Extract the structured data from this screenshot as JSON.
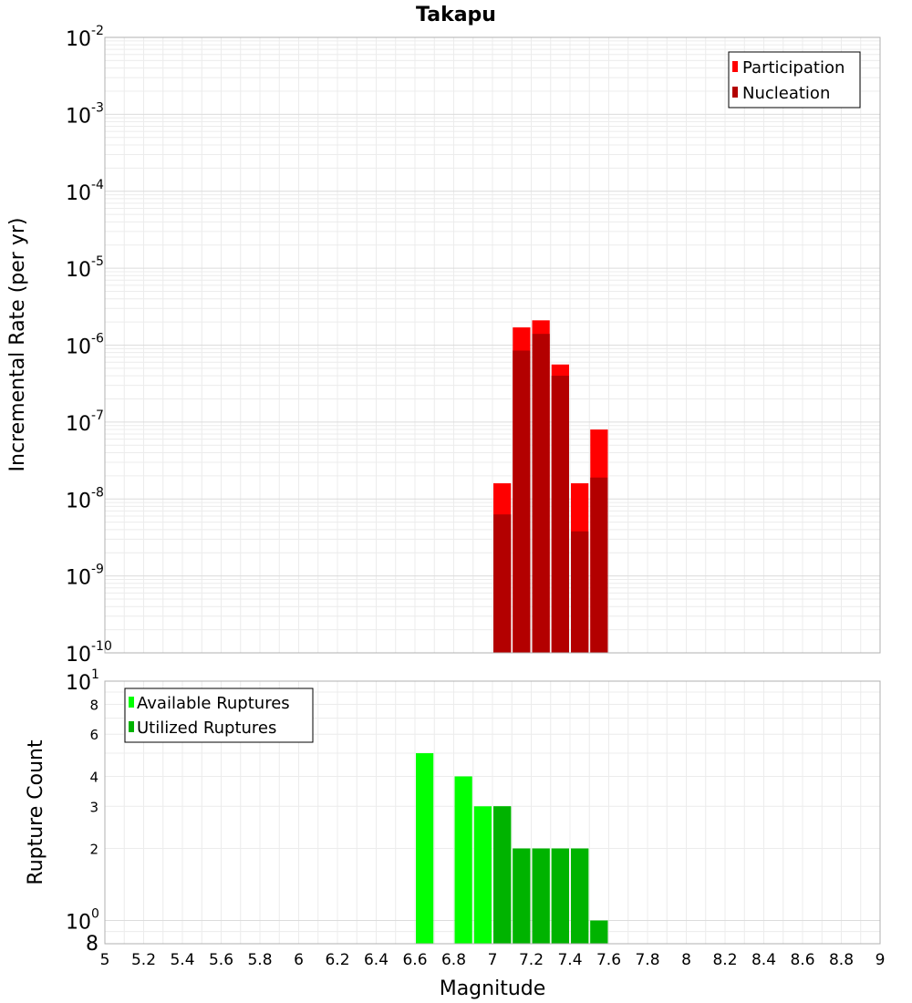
{
  "chart_data": [
    {
      "type": "bar",
      "title": "Takapu",
      "ylabel": "Incremental Rate (per yr)",
      "xlabel": "",
      "yscale": "log",
      "ylim": [
        1e-10,
        0.01
      ],
      "xlim": [
        5,
        9
      ],
      "bar_width": 0.1,
      "y_ticks": [
        {
          "base": "10",
          "exp": "-2",
          "value": 0.01
        },
        {
          "base": "10",
          "exp": "-3",
          "value": 0.001
        },
        {
          "base": "10",
          "exp": "-4",
          "value": 0.0001
        },
        {
          "base": "10",
          "exp": "-5",
          "value": 1e-05
        },
        {
          "base": "10",
          "exp": "-6",
          "value": 1e-06
        },
        {
          "base": "10",
          "exp": "-7",
          "value": 1e-07
        },
        {
          "base": "10",
          "exp": "-8",
          "value": 1e-08
        },
        {
          "base": "10",
          "exp": "-9",
          "value": 1e-09
        },
        {
          "base": "10",
          "exp": "-10",
          "value": 1e-10
        }
      ],
      "legend": {
        "position": "top-right",
        "entries": [
          {
            "label": "Participation",
            "color": "#ff0000"
          },
          {
            "label": "Nucleation",
            "color": "#b30000"
          }
        ]
      },
      "series": [
        {
          "name": "Participation",
          "color": "#ff0000",
          "x": [
            7.05,
            7.15,
            7.25,
            7.35,
            7.45,
            7.55
          ],
          "values": [
            1.6e-08,
            1.7e-06,
            2.1e-06,
            5.6e-07,
            1.6e-08,
            8e-08
          ]
        },
        {
          "name": "Nucleation",
          "color": "#b30000",
          "x": [
            7.05,
            7.15,
            7.25,
            7.35,
            7.45,
            7.55
          ],
          "values": [
            6.3e-09,
            8.5e-07,
            1.4e-06,
            4e-07,
            3.8e-09,
            1.9e-08
          ]
        }
      ]
    },
    {
      "type": "bar",
      "title": "",
      "ylabel": "Rupture Count",
      "xlabel": "Magnitude",
      "yscale": "log",
      "ylim": [
        0.8,
        10
      ],
      "xlim": [
        5,
        9
      ],
      "bar_width": 0.1,
      "x_ticks": [
        "5",
        "5.2",
        "5.4",
        "5.6",
        "5.8",
        "6",
        "6.2",
        "6.4",
        "6.6",
        "6.8",
        "7",
        "7.2",
        "7.4",
        "7.6",
        "7.8",
        "8",
        "8.2",
        "8.4",
        "8.6",
        "8.8",
        "9"
      ],
      "y_major_ticks": [
        {
          "base": "10",
          "exp": "1",
          "value": 10
        },
        {
          "base": "10",
          "exp": "0",
          "value": 1
        }
      ],
      "y_minor_ticks": [
        {
          "label": "8",
          "value": 8
        },
        {
          "label": "6",
          "value": 6
        },
        {
          "label": "4",
          "value": 4
        },
        {
          "label": "3",
          "value": 3
        },
        {
          "label": "2",
          "value": 2
        },
        {
          "label": "8",
          "value": 0.8
        }
      ],
      "legend": {
        "position": "top-left",
        "entries": [
          {
            "label": "Available Ruptures",
            "color": "#00ff00"
          },
          {
            "label": "Utilized Ruptures",
            "color": "#00b300"
          }
        ]
      },
      "series": [
        {
          "name": "Available Ruptures",
          "color": "#00ff00",
          "x": [
            6.65,
            6.85,
            6.95,
            7.05,
            7.15,
            7.25,
            7.35,
            7.45,
            7.55
          ],
          "values": [
            5,
            4,
            3,
            3,
            2,
            2,
            2,
            2,
            1
          ]
        },
        {
          "name": "Utilized Ruptures",
          "color": "#00b300",
          "x": [
            7.05,
            7.15,
            7.25,
            7.35,
            7.45,
            7.55
          ],
          "values": [
            3,
            2,
            2,
            2,
            2,
            1
          ]
        }
      ]
    }
  ]
}
